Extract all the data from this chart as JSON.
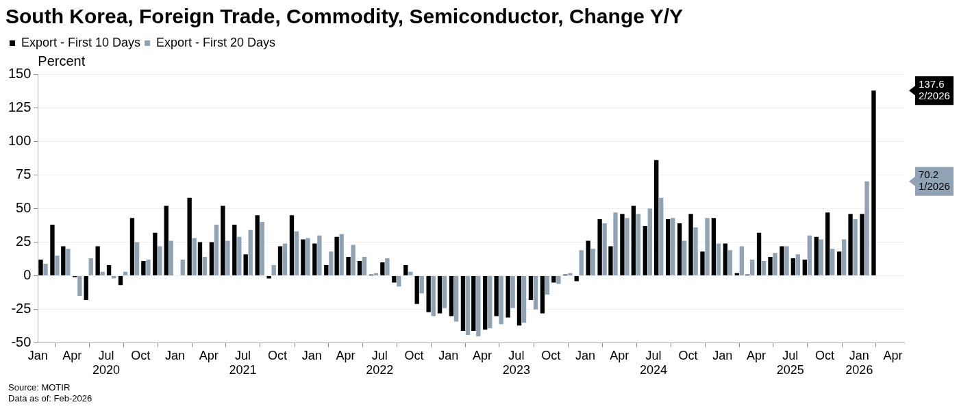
{
  "chart_data": {
    "type": "bar",
    "title": "South Korea, Foreign Trade, Commodity, Semiconductor, Change Y/Y",
    "ylabel": "Percent",
    "x": [
      "2020-01-15",
      "2020-02-15",
      "2020-03-15",
      "2020-04-15",
      "2020-05-15",
      "2020-06-15",
      "2020-07-15",
      "2020-08-15",
      "2020-09-15",
      "2020-10-15",
      "2020-11-15",
      "2020-12-15",
      "2021-01-15",
      "2021-02-15",
      "2021-03-15",
      "2021-04-15",
      "2021-05-15",
      "2021-06-15",
      "2021-07-15",
      "2021-08-15",
      "2021-09-15",
      "2021-10-15",
      "2021-11-15",
      "2021-12-15",
      "2022-01-15",
      "2022-02-15",
      "2022-03-15",
      "2022-04-15",
      "2022-05-15",
      "2022-06-15",
      "2022-07-15",
      "2022-08-15",
      "2022-09-15",
      "2022-10-15",
      "2022-11-15",
      "2022-12-15",
      "2023-01-15",
      "2023-02-15",
      "2023-03-15",
      "2023-04-15",
      "2023-05-15",
      "2023-06-15",
      "2023-07-15",
      "2023-08-15",
      "2023-09-15",
      "2023-10-15",
      "2023-11-15",
      "2023-12-15",
      "2024-01-15",
      "2024-02-15",
      "2024-03-15",
      "2024-04-15",
      "2024-05-15",
      "2024-06-15",
      "2024-07-15",
      "2024-08-15",
      "2024-09-15",
      "2024-10-15",
      "2024-11-15",
      "2024-12-15",
      "2025-01-15",
      "2025-02-15",
      "2025-03-15",
      "2025-04-15",
      "2025-05-15",
      "2025-06-15",
      "2025-07-15",
      "2025-08-15",
      "2025-09-15",
      "2025-10-15",
      "2025-11-15",
      "2025-12-15",
      "2026-01-15",
      "2026-02-15"
    ],
    "series": [
      {
        "name": "Export - First 10 Days",
        "color": "#000000",
        "values": [
          12,
          38,
          22,
          -1,
          -18,
          22,
          8,
          -7,
          43,
          11,
          32,
          52,
          0,
          58,
          25,
          25,
          52,
          38,
          16,
          45,
          -2,
          22,
          45,
          27,
          24,
          8,
          29,
          14,
          11,
          1,
          10,
          -5,
          8,
          -21,
          -27,
          -28,
          -30,
          -41,
          -41,
          -40,
          -30,
          -31,
          -37,
          -18,
          -28,
          -5,
          1,
          -4,
          26,
          42,
          22,
          46,
          52,
          37,
          86,
          42,
          39,
          46,
          18,
          43,
          24,
          2,
          1,
          32,
          14,
          22,
          13,
          12,
          29,
          47,
          18,
          46,
          46,
          137.6
        ]
      },
      {
        "name": "Export - First 20 Days",
        "color": "#8fa3b5",
        "values": [
          9,
          15,
          20,
          -15,
          13,
          3,
          -2,
          3,
          25,
          12,
          22,
          26,
          12,
          28,
          14,
          38,
          26,
          29,
          34,
          40,
          8,
          24,
          33,
          28,
          30,
          18,
          31,
          23,
          14,
          2,
          13,
          -8,
          3,
          -13,
          -30,
          -24,
          -34,
          -44,
          -45,
          -39,
          -36,
          -24,
          -35,
          -25,
          -14,
          -6,
          2,
          19,
          20,
          39,
          47,
          43,
          46,
          50,
          58,
          43,
          26,
          36,
          43,
          24,
          19,
          22,
          12,
          11,
          17,
          22,
          16,
          30,
          27,
          20,
          27,
          42,
          70.2,
          null
        ]
      }
    ],
    "xlim": [
      "2020-01",
      "2026-05"
    ],
    "xticks": [
      {
        "value": "2020-01",
        "label": "Jan"
      },
      {
        "value": "2020-04",
        "label": "Apr"
      },
      {
        "value": "2020-07",
        "label": "Jul\n2020"
      },
      {
        "value": "2020-10",
        "label": "Oct"
      },
      {
        "value": "2021-01",
        "label": "Jan"
      },
      {
        "value": "2021-04",
        "label": "Apr"
      },
      {
        "value": "2021-07",
        "label": "Jul\n2021"
      },
      {
        "value": "2021-10",
        "label": "Oct"
      },
      {
        "value": "2022-01",
        "label": "Jan"
      },
      {
        "value": "2022-04",
        "label": "Apr"
      },
      {
        "value": "2022-07",
        "label": "Jul\n2022"
      },
      {
        "value": "2022-10",
        "label": "Oct"
      },
      {
        "value": "2023-01",
        "label": "Jan"
      },
      {
        "value": "2023-04",
        "label": "Apr"
      },
      {
        "value": "2023-07",
        "label": "Jul\n2023"
      },
      {
        "value": "2023-10",
        "label": "Oct"
      },
      {
        "value": "2024-01",
        "label": "Jan"
      },
      {
        "value": "2024-04",
        "label": "Apr"
      },
      {
        "value": "2024-07",
        "label": "Jul\n2024"
      },
      {
        "value": "2024-10",
        "label": "Oct"
      },
      {
        "value": "2025-01",
        "label": "Jan"
      },
      {
        "value": "2025-04",
        "label": "Apr"
      },
      {
        "value": "2025-07",
        "label": "Jul\n2025"
      },
      {
        "value": "2025-10",
        "label": "Oct"
      },
      {
        "value": "2026-01",
        "label": "Jan\n2026"
      },
      {
        "value": "2026-04",
        "label": "Apr"
      }
    ],
    "ylim": [
      -50,
      150
    ],
    "yticks": [
      -50,
      -25,
      0,
      25,
      50,
      75,
      100,
      125,
      150
    ],
    "grid": "y",
    "legend": "top left",
    "annotations": [
      "137.6\n2/2026",
      "70.2\n1/2026",
      "Source: MOTIR",
      "Data as of: Feb-2026"
    ]
  }
}
